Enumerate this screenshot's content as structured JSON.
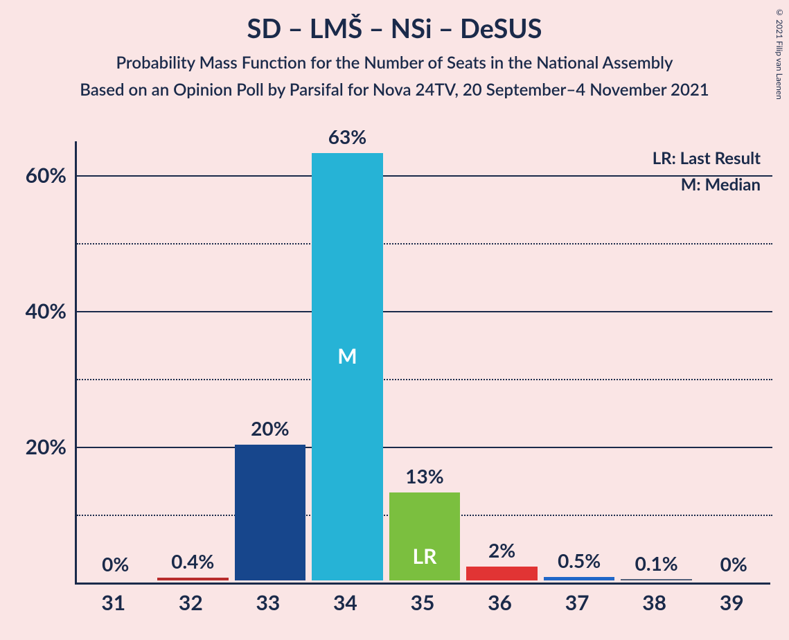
{
  "header": {
    "title": "SD – LMŠ – NSi – DeSUS",
    "subtitle": "Probability Mass Function for the Number of Seats in the National Assembly",
    "source": "Based on an Opinion Poll by Parsifal for Nova 24TV, 20 September–4 November 2021"
  },
  "copyright": "© 2021 Filip van Laenen",
  "legend": {
    "lr": "LR: Last Result",
    "m": "M: Median"
  },
  "chart": {
    "type": "bar",
    "background_color": "#fae5e5",
    "axis_color": "#1a2a4a",
    "grid_solid_color": "#1a2a4a",
    "grid_dotted_color": "#1a2a4a",
    "text_color": "#1a2a4a",
    "ylim": [
      0,
      65
    ],
    "ytick_step": 20,
    "y_minor_step": 10,
    "yticks": [
      "20%",
      "40%",
      "60%"
    ],
    "categories": [
      "31",
      "32",
      "33",
      "34",
      "35",
      "36",
      "37",
      "38",
      "39"
    ],
    "values": [
      0,
      0.4,
      20,
      63,
      13,
      2,
      0.5,
      0.1,
      0
    ],
    "value_labels": [
      "0%",
      "0.4%",
      "20%",
      "63%",
      "13%",
      "2%",
      "0.5%",
      "0.1%",
      "0%"
    ],
    "bar_colors": [
      "#b82c2c",
      "#b82c2c",
      "#17468c",
      "#26b3d6",
      "#7bbf3f",
      "#e13434",
      "#2067c8",
      "#515f7a",
      "#515f7a"
    ],
    "bar_width_ratio": 0.92,
    "median_index": 3,
    "median_label": "M",
    "lr_index": 4,
    "lr_label": "LR",
    "inner_label_color": "#ffffff",
    "title_fontsize": 38,
    "subtitle_fontsize": 24,
    "tick_fontsize": 30,
    "bar_label_fontsize": 28
  }
}
